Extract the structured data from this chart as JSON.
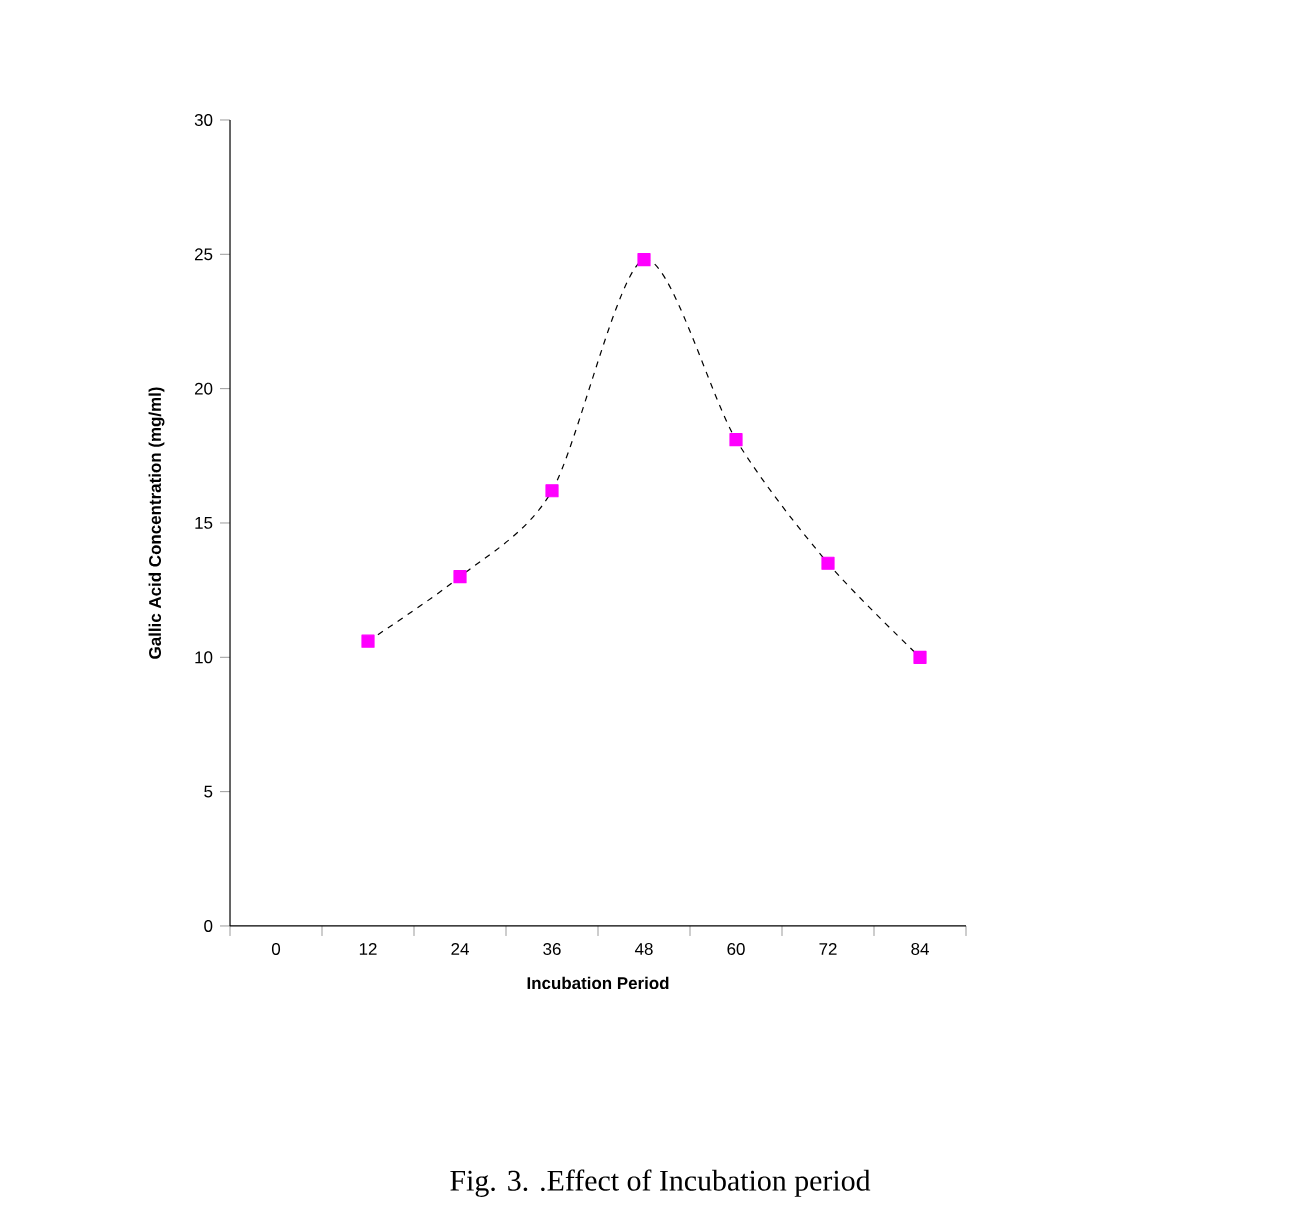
{
  "chart_data": {
    "type": "line",
    "xlabel": "Incubation Period",
    "ylabel": "Gallic Acid Concentration (mg/ml)",
    "categories": [
      "0",
      "12",
      "24",
      "36",
      "48",
      "60",
      "72",
      "84"
    ],
    "series": [
      {
        "color": "#ff00ff",
        "values": [
          null,
          10.6,
          13.0,
          16.2,
          24.8,
          18.1,
          13.5,
          10.0
        ]
      }
    ],
    "ylim": [
      0,
      30
    ],
    "yticks": [
      0,
      5,
      10,
      15,
      20,
      25,
      30
    ],
    "marker": "square",
    "line_style": "dashed",
    "grid": false,
    "annotations": [
      "Fig. 3.  .Effect of Incubation period"
    ]
  }
}
